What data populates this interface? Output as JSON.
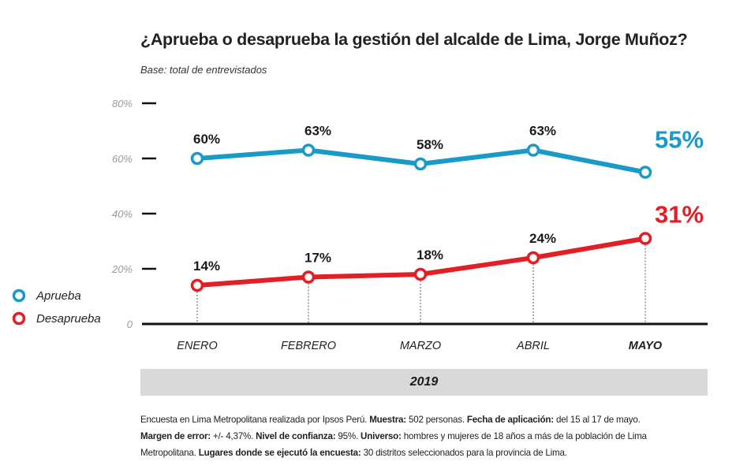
{
  "chart_data": {
    "type": "line",
    "title": "¿Aprueba o desaprueba la gestión del alcalde de Lima, Jorge Muñoz?",
    "subtitle": "Base: total de entrevistados",
    "categories": [
      "ENERO",
      "FEBRERO",
      "MARZO",
      "ABRIL",
      "MAYO"
    ],
    "xgroup_label": "2019",
    "ylim": [
      0,
      80
    ],
    "yticks": [
      "0",
      "20%",
      "40%",
      "60%",
      "80%"
    ],
    "grid": false,
    "legend_position": "left",
    "series": [
      {
        "name": "Aprueba",
        "color": "#1a9bc7",
        "values": [
          60,
          63,
          58,
          63,
          55
        ],
        "labels": [
          "60%",
          "63%",
          "58%",
          "63%",
          "55%"
        ]
      },
      {
        "name": "Desaprueba",
        "color": "#e31e24",
        "values": [
          14,
          17,
          18,
          24,
          31
        ],
        "labels": [
          "14%",
          "17%",
          "18%",
          "24%",
          "31%"
        ]
      }
    ]
  },
  "footer": [
    [
      {
        "t": "Encuesta en Lima Metropolitana realizada por Ipsos Perú. ",
        "b": false
      },
      {
        "t": "Muestra:",
        "b": true
      },
      {
        "t": " 502 personas. ",
        "b": false
      },
      {
        "t": "Fecha de aplicación:",
        "b": true
      },
      {
        "t": " del 15 al 17 de mayo.",
        "b": false
      }
    ],
    [
      {
        "t": "Margen de error:",
        "b": true
      },
      {
        "t": " +/- 4,37%. ",
        "b": false
      },
      {
        "t": "Nivel de confianza:",
        "b": true
      },
      {
        "t": " 95%. ",
        "b": false
      },
      {
        "t": "Universo:",
        "b": true
      },
      {
        "t": " hombres y mujeres de 18 años a más de la población de Lima",
        "b": false
      }
    ],
    [
      {
        "t": "Metropolitana. ",
        "b": false
      },
      {
        "t": "Lugares donde se ejecutó la encuesta:",
        "b": true
      },
      {
        "t": " 30 distritos seleccionados para la provincia de Lima.",
        "b": false
      }
    ]
  ]
}
